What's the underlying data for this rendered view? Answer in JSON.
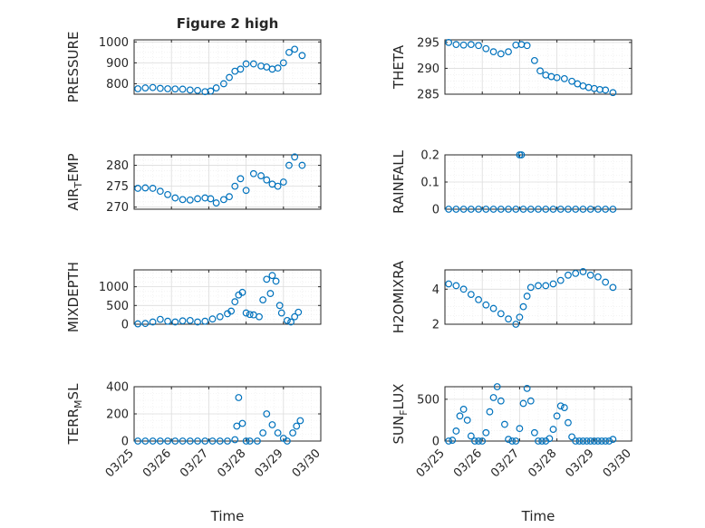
{
  "figure": {
    "title": "Figure 2 high",
    "xlabel": "Time",
    "xtick_labels": [
      "03/25",
      "03/26",
      "03/27",
      "03/28",
      "03/29",
      "03/30"
    ]
  },
  "colors": {
    "marker": "#0072BD",
    "axis": "#262626",
    "grid_major": "#dcdcdc",
    "grid_minor": "#ebebeb",
    "background": "#ffffff"
  },
  "chart_data": [
    {
      "id": "pressure",
      "type": "scatter",
      "marker": "circle",
      "ylabel": "PRESSURE",
      "xlim": [
        0,
        5
      ],
      "ylim": [
        750,
        1010
      ],
      "yticks": [
        800,
        900,
        1000
      ],
      "grid": true,
      "minor_grid": true,
      "x": [
        0.1,
        0.3,
        0.5,
        0.7,
        0.9,
        1.1,
        1.3,
        1.5,
        1.7,
        1.9,
        2.05,
        2.2,
        2.4,
        2.55,
        2.7,
        2.85,
        3.0,
        3.2,
        3.4,
        3.55,
        3.7,
        3.85,
        4.0,
        4.15,
        4.3,
        4.5
      ],
      "y": [
        776,
        780,
        782,
        778,
        776,
        775,
        774,
        770,
        768,
        762,
        765,
        780,
        800,
        830,
        860,
        870,
        895,
        895,
        885,
        880,
        870,
        875,
        900,
        950,
        965,
        935
      ]
    },
    {
      "id": "theta",
      "type": "scatter",
      "marker": "circle",
      "ylabel": "THETA",
      "xlim": [
        0,
        5
      ],
      "ylim": [
        285,
        295.5
      ],
      "yticks": [
        285,
        290,
        295
      ],
      "grid": true,
      "minor_grid": true,
      "x": [
        0.1,
        0.3,
        0.5,
        0.7,
        0.9,
        1.1,
        1.3,
        1.5,
        1.7,
        1.9,
        2.05,
        2.2,
        2.4,
        2.55,
        2.7,
        2.85,
        3.0,
        3.2,
        3.4,
        3.55,
        3.7,
        3.85,
        4.0,
        4.15,
        4.3,
        4.5
      ],
      "y": [
        295,
        294.6,
        294.5,
        294.6,
        294.4,
        293.8,
        293.2,
        292.8,
        293.2,
        294.5,
        294.6,
        294.4,
        291.5,
        289.5,
        288.7,
        288.4,
        288.2,
        288.0,
        287.5,
        287.0,
        286.6,
        286.3,
        286.1,
        285.9,
        285.8,
        285.3
      ]
    },
    {
      "id": "air_temp",
      "type": "scatter",
      "marker": "circle",
      "ylabel": "AIR",
      "ylabel_subscript": "T",
      "ylabel_suffix": "EMP",
      "xlim": [
        0,
        5
      ],
      "ylim": [
        269.5,
        282.5
      ],
      "yticks": [
        270,
        275,
        280
      ],
      "grid": true,
      "minor_grid": true,
      "x": [
        0.1,
        0.3,
        0.5,
        0.7,
        0.9,
        1.1,
        1.3,
        1.5,
        1.7,
        1.9,
        2.05,
        2.2,
        2.4,
        2.55,
        2.7,
        2.85,
        3.0,
        3.2,
        3.4,
        3.55,
        3.7,
        3.85,
        4.0,
        4.15,
        4.3,
        4.5
      ],
      "y": [
        274.5,
        274.6,
        274.5,
        273.8,
        273.0,
        272.2,
        271.8,
        271.7,
        272.0,
        272.2,
        272.0,
        271.0,
        271.8,
        272.5,
        275.0,
        276.8,
        274.0,
        278.0,
        277.5,
        276.5,
        275.5,
        275.0,
        276.0,
        280.0,
        282.0,
        280.0
      ]
    },
    {
      "id": "rainfall",
      "type": "scatter",
      "marker": "circle",
      "ylabel": "RAINFALL",
      "xlim": [
        0,
        5
      ],
      "ylim": [
        0,
        0.2
      ],
      "yticks": [
        0,
        0.1,
        0.2
      ],
      "grid": true,
      "minor_grid": true,
      "x": [
        0.1,
        0.3,
        0.5,
        0.7,
        0.9,
        1.1,
        1.3,
        1.5,
        1.7,
        1.9,
        2.0,
        2.05,
        2.1,
        2.3,
        2.5,
        2.7,
        2.9,
        3.1,
        3.3,
        3.5,
        3.7,
        3.9,
        4.1,
        4.3,
        4.5
      ],
      "y": [
        0,
        0,
        0,
        0,
        0,
        0,
        0,
        0,
        0,
        0,
        0.2,
        0.2,
        0,
        0,
        0,
        0,
        0,
        0,
        0,
        0,
        0,
        0,
        0,
        0,
        0
      ]
    },
    {
      "id": "mixdepth",
      "type": "scatter",
      "marker": "circle",
      "ylabel": "MIXDEPTH",
      "xlim": [
        0,
        5
      ],
      "ylim": [
        0,
        1450
      ],
      "yticks": [
        0,
        500,
        1000
      ],
      "grid": true,
      "minor_grid": true,
      "x": [
        0.1,
        0.3,
        0.5,
        0.7,
        0.9,
        1.1,
        1.3,
        1.5,
        1.7,
        1.9,
        2.1,
        2.3,
        2.5,
        2.6,
        2.7,
        2.8,
        2.9,
        3.0,
        3.1,
        3.2,
        3.35,
        3.45,
        3.55,
        3.65,
        3.7,
        3.8,
        3.9,
        3.95,
        4.1,
        4.2,
        4.3,
        4.4
      ],
      "y": [
        10,
        20,
        60,
        130,
        80,
        60,
        90,
        100,
        60,
        80,
        140,
        200,
        280,
        350,
        600,
        780,
        850,
        300,
        260,
        250,
        200,
        650,
        1200,
        820,
        1300,
        1150,
        500,
        300,
        100,
        60,
        200,
        320
      ]
    },
    {
      "id": "h2omixra",
      "type": "scatter",
      "marker": "circle",
      "ylabel": "H2OMIXRA",
      "xlim": [
        0,
        5
      ],
      "ylim": [
        2,
        5.1
      ],
      "yticks": [
        2,
        4
      ],
      "grid": true,
      "minor_grid": true,
      "x": [
        0.1,
        0.3,
        0.5,
        0.7,
        0.9,
        1.1,
        1.3,
        1.5,
        1.7,
        1.9,
        2.0,
        2.1,
        2.2,
        2.3,
        2.5,
        2.7,
        2.9,
        3.1,
        3.3,
        3.5,
        3.7,
        3.9,
        4.1,
        4.3,
        4.5
      ],
      "y": [
        4.3,
        4.2,
        4.0,
        3.7,
        3.4,
        3.1,
        2.9,
        2.6,
        2.3,
        2.0,
        2.4,
        3.0,
        3.6,
        4.1,
        4.2,
        4.2,
        4.3,
        4.5,
        4.8,
        4.9,
        5.0,
        4.8,
        4.7,
        4.4,
        4.1
      ]
    },
    {
      "id": "terr_msl",
      "type": "scatter",
      "marker": "circle",
      "ylabel": "TERR",
      "ylabel_subscript": "M",
      "ylabel_suffix": "SL",
      "xlim": [
        0,
        5
      ],
      "ylim": [
        0,
        400
      ],
      "yticks": [
        0,
        200,
        400
      ],
      "grid": true,
      "minor_grid": true,
      "x": [
        0.1,
        0.3,
        0.5,
        0.7,
        0.9,
        1.1,
        1.3,
        1.5,
        1.7,
        1.9,
        2.1,
        2.3,
        2.5,
        2.7,
        2.75,
        2.8,
        2.9,
        3.0,
        3.1,
        3.3,
        3.45,
        3.55,
        3.7,
        3.85,
        4.0,
        4.1,
        4.25,
        4.35,
        4.45
      ],
      "y": [
        0,
        0,
        0,
        0,
        0,
        0,
        0,
        0,
        0,
        0,
        0,
        0,
        0,
        10,
        110,
        320,
        130,
        0,
        0,
        0,
        60,
        200,
        120,
        60,
        20,
        0,
        60,
        110,
        150
      ]
    },
    {
      "id": "sun_flux",
      "type": "scatter",
      "marker": "circle",
      "ylabel": "SUN",
      "ylabel_subscript": "F",
      "ylabel_suffix": "LUX",
      "xlim": [
        0,
        5
      ],
      "ylim": [
        0,
        650
      ],
      "yticks": [
        0,
        500
      ],
      "grid": true,
      "minor_grid": true,
      "x": [
        0.1,
        0.2,
        0.3,
        0.4,
        0.5,
        0.6,
        0.7,
        0.8,
        0.9,
        1.0,
        1.1,
        1.2,
        1.3,
        1.4,
        1.5,
        1.6,
        1.7,
        1.8,
        1.9,
        2.0,
        2.1,
        2.2,
        2.3,
        2.4,
        2.5,
        2.6,
        2.7,
        2.8,
        2.9,
        3.0,
        3.1,
        3.2,
        3.3,
        3.4,
        3.5,
        3.6,
        3.7,
        3.8,
        3.9,
        4.0,
        4.1,
        4.2,
        4.3,
        4.4,
        4.5
      ],
      "y": [
        0,
        10,
        120,
        300,
        380,
        250,
        60,
        0,
        0,
        0,
        100,
        350,
        520,
        650,
        480,
        200,
        20,
        0,
        0,
        150,
        450,
        630,
        480,
        100,
        0,
        0,
        0,
        30,
        140,
        300,
        420,
        400,
        220,
        50,
        0,
        0,
        0,
        0,
        0,
        0,
        0,
        0,
        0,
        0,
        20
      ]
    }
  ]
}
